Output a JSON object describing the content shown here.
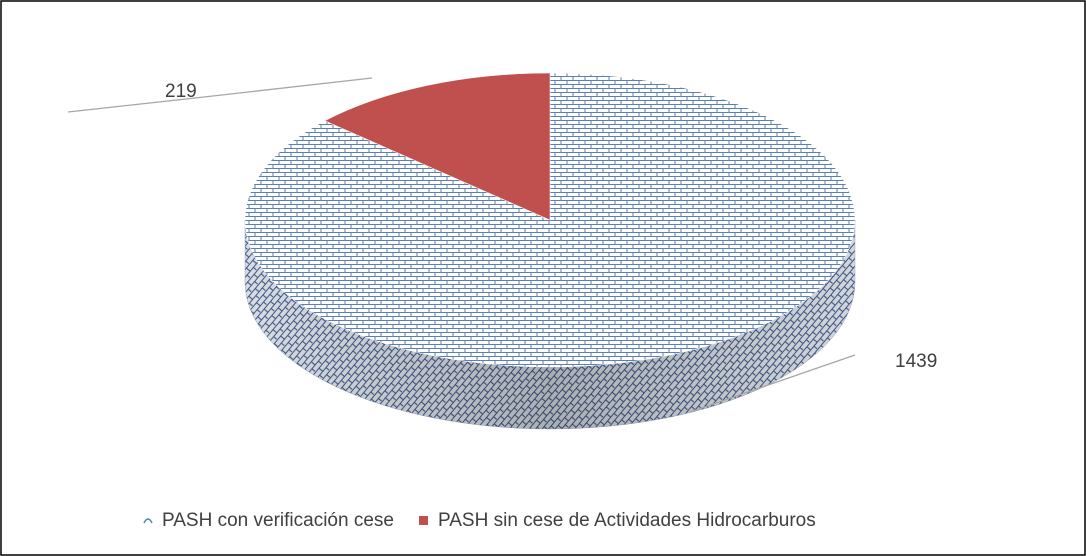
{
  "chart_data": {
    "type": "pie3d",
    "categories": [
      "PASH con verificación cese",
      "PASH sin cese de Actividades Hidrocarburos"
    ],
    "values": [
      1439,
      219
    ],
    "colors": [
      "#4f81bd",
      "#c0504d"
    ],
    "legend": "bottom"
  }
}
